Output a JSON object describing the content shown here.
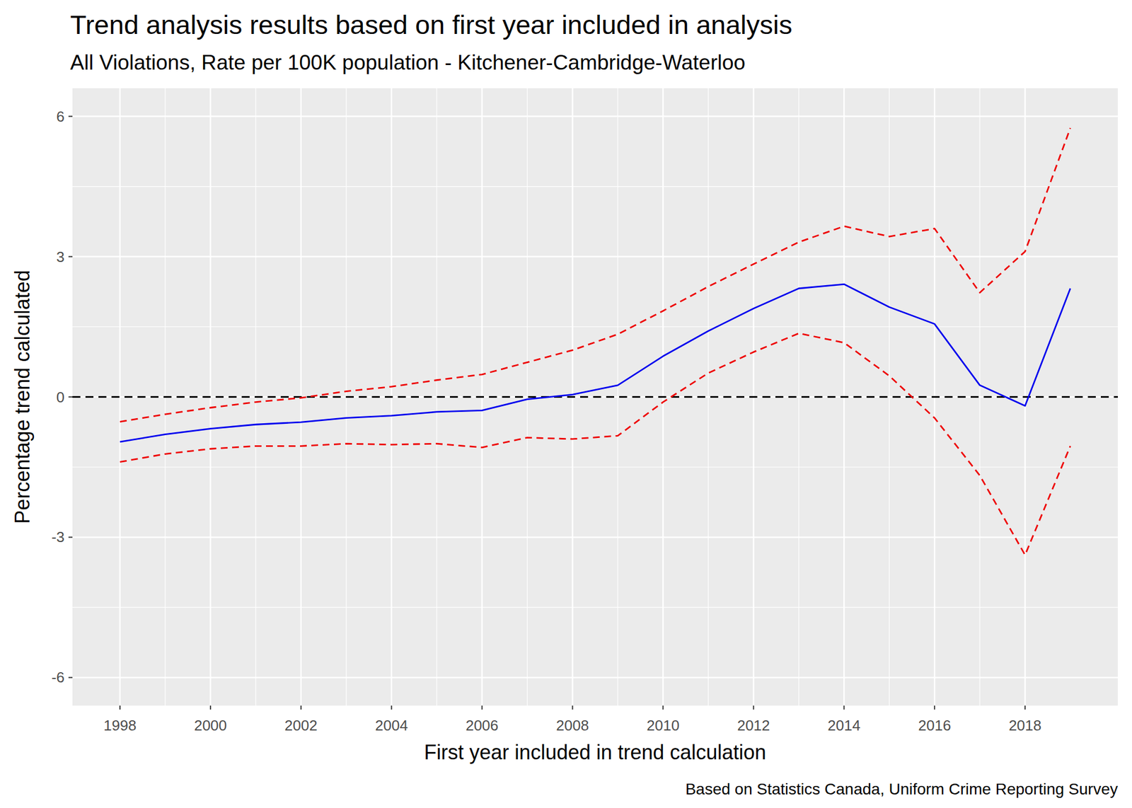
{
  "chart_data": {
    "type": "line",
    "title": "Trend analysis results based on first year included in analysis",
    "subtitle": "All Violations, Rate per 100K population - Kitchener-Cambridge-Waterloo",
    "x_label": "First year included in trend calculation",
    "y_label": "Percentage trend calculated",
    "caption": "Based on Statistics Canada, Uniform Crime Reporting Survey",
    "x": [
      1998,
      1999,
      2000,
      2001,
      2002,
      2003,
      2004,
      2005,
      2006,
      2007,
      2008,
      2009,
      2010,
      2011,
      2012,
      2013,
      2014,
      2015,
      2016,
      2017,
      2018,
      2019
    ],
    "series": [
      {
        "color": "#0000ee",
        "line_style": "solid",
        "values": [
          -0.96,
          -0.8,
          -0.68,
          -0.59,
          -0.54,
          -0.45,
          -0.4,
          -0.32,
          -0.29,
          -0.05,
          0.05,
          0.25,
          0.87,
          1.41,
          1.89,
          2.32,
          2.41,
          1.92,
          1.56,
          0.25,
          -0.19,
          2.32
        ]
      },
      {
        "color": "#ee0000",
        "line_style": "dashed",
        "values": [
          -0.53,
          -0.37,
          -0.23,
          -0.11,
          -0.02,
          0.12,
          0.22,
          0.36,
          0.48,
          0.74,
          1.0,
          1.34,
          1.84,
          2.36,
          2.84,
          3.31,
          3.65,
          3.43,
          3.6,
          2.23,
          3.11,
          5.75
        ]
      },
      {
        "color": "#ee0000",
        "line_style": "dashed",
        "values": [
          -1.39,
          -1.22,
          -1.11,
          -1.05,
          -1.05,
          -1.0,
          -1.02,
          -1.0,
          -1.08,
          -0.87,
          -0.9,
          -0.83,
          -0.11,
          0.51,
          0.96,
          1.36,
          1.16,
          0.45,
          -0.45,
          -1.68,
          -3.38,
          -1.05
        ]
      }
    ],
    "hline": 0,
    "xlim": [
      1996.95,
      2020.05
    ],
    "ylim": [
      -6.6,
      6.6
    ],
    "xticks": [
      1998,
      2000,
      2002,
      2004,
      2006,
      2008,
      2010,
      2012,
      2014,
      2016,
      2018
    ],
    "yticks": [
      -6,
      -3,
      0,
      3,
      6
    ],
    "grid": true
  }
}
